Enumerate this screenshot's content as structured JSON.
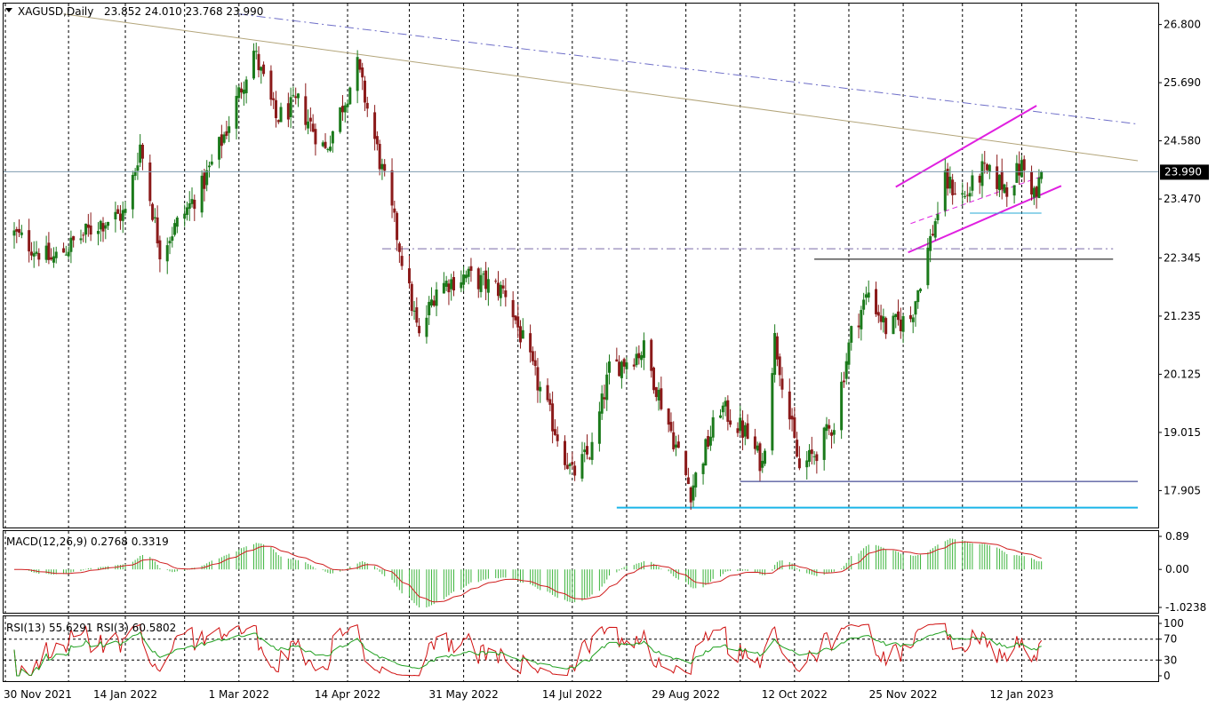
{
  "chart_data": {
    "type": "candlestick",
    "header": {
      "symbol": "XAGUSD,Daily",
      "ohlc": "23.852 24.010 23.768 23.990"
    },
    "price_axis_labels": [
      "26.800",
      "25.690",
      "24.580",
      "23.470",
      "22.345",
      "21.235",
      "20.125",
      "19.015",
      "17.905"
    ],
    "current_price_label": "23.990",
    "current_price": 23.99,
    "ylim": [
      17.2,
      27.2
    ],
    "date_labels": [
      "30 Nov 2021",
      "14 Jan 2022",
      "1 Mar 2022",
      "14 Apr 2022",
      "31 May 2022",
      "14 Jul 2022",
      "29 Aug 2022",
      "12 Oct 2022",
      "25 Nov 2022",
      "12 Jan 2023"
    ],
    "waypoints": [
      {
        "date": "2021-11-30",
        "price": 22.8
      },
      {
        "date": "2021-12-15",
        "price": 22.3
      },
      {
        "date": "2022-01-03",
        "price": 23.0
      },
      {
        "date": "2022-01-14",
        "price": 23.2
      },
      {
        "date": "2022-01-20",
        "price": 24.5
      },
      {
        "date": "2022-01-28",
        "price": 22.5
      },
      {
        "date": "2022-02-14",
        "price": 23.7
      },
      {
        "date": "2022-02-24",
        "price": 24.8
      },
      {
        "date": "2022-03-07",
        "price": 26.3
      },
      {
        "date": "2022-03-16",
        "price": 25.0
      },
      {
        "date": "2022-03-25",
        "price": 25.3
      },
      {
        "date": "2022-04-05",
        "price": 24.4
      },
      {
        "date": "2022-04-18",
        "price": 26.0
      },
      {
        "date": "2022-05-03",
        "price": 23.0
      },
      {
        "date": "2022-05-13",
        "price": 20.8
      },
      {
        "date": "2022-05-20",
        "price": 21.8
      },
      {
        "date": "2022-06-01",
        "price": 22.0
      },
      {
        "date": "2022-06-17",
        "price": 21.7
      },
      {
        "date": "2022-06-28",
        "price": 20.2
      },
      {
        "date": "2022-07-14",
        "price": 18.2
      },
      {
        "date": "2022-07-22",
        "price": 18.7
      },
      {
        "date": "2022-07-29",
        "price": 20.2
      },
      {
        "date": "2022-08-12",
        "price": 20.6
      },
      {
        "date": "2022-08-31",
        "price": 17.9
      },
      {
        "date": "2022-09-12",
        "price": 19.5
      },
      {
        "date": "2022-09-22",
        "price": 19.0
      },
      {
        "date": "2022-09-29",
        "price": 18.4
      },
      {
        "date": "2022-10-04",
        "price": 20.8
      },
      {
        "date": "2022-10-14",
        "price": 18.3
      },
      {
        "date": "2022-10-20",
        "price": 18.6
      },
      {
        "date": "2022-10-28",
        "price": 19.2
      },
      {
        "date": "2022-11-04",
        "price": 20.9
      },
      {
        "date": "2022-11-11",
        "price": 21.7
      },
      {
        "date": "2022-11-18",
        "price": 21.0
      },
      {
        "date": "2022-11-28",
        "price": 21.2
      },
      {
        "date": "2022-12-05",
        "price": 22.5
      },
      {
        "date": "2022-12-12",
        "price": 23.8
      },
      {
        "date": "2022-12-20",
        "price": 23.5
      },
      {
        "date": "2022-12-27",
        "price": 24.0
      },
      {
        "date": "2023-01-06",
        "price": 23.7
      },
      {
        "date": "2023-01-12",
        "price": 24.1
      },
      {
        "date": "2023-01-18",
        "price": 23.5
      },
      {
        "date": "2023-01-20",
        "price": 23.99
      }
    ],
    "drawn_lines": [
      {
        "name": "long-term-resistance",
        "color": "#b3a57a",
        "style": "solid",
        "from": {
          "date": "2021-12-20",
          "price": 27.0
        },
        "to": {
          "date": "2023-02-28",
          "price": 24.2
        }
      },
      {
        "name": "upper-dashdot-trend",
        "color": "#6e6ec8",
        "style": "dashdot",
        "from": {
          "date": "2022-03-01",
          "price": 27.0
        },
        "to": {
          "date": "2023-02-28",
          "price": 24.9
        }
      },
      {
        "name": "channel-upper",
        "color": "#e020e0",
        "style": "solid",
        "from": {
          "date": "2022-11-22",
          "price": 23.7
        },
        "to": {
          "date": "2023-01-18",
          "price": 25.25
        }
      },
      {
        "name": "channel-lower",
        "color": "#e020e0",
        "style": "solid",
        "from": {
          "date": "2022-11-27",
          "price": 22.45
        },
        "to": {
          "date": "2023-01-28",
          "price": 23.72
        }
      },
      {
        "name": "channel-mid",
        "color": "#e020e0",
        "style": "dash",
        "from": {
          "date": "2022-11-28",
          "price": 23.0
        },
        "to": {
          "date": "2023-01-20",
          "price": 23.9
        }
      },
      {
        "name": "level-22-5",
        "color": "#7a6aa8",
        "style": "dashdot",
        "from": {
          "date": "2022-04-28",
          "price": 22.52
        },
        "to": {
          "date": "2023-02-18",
          "price": 22.52
        }
      },
      {
        "name": "level-22-3",
        "color": "#000000",
        "style": "solid",
        "from": {
          "date": "2022-10-20",
          "price": 22.32
        },
        "to": {
          "date": "2023-02-18",
          "price": 22.32
        }
      },
      {
        "name": "level-23-2",
        "color": "#26a9d6",
        "style": "solid",
        "from": {
          "date": "2022-12-22",
          "price": 23.2
        },
        "to": {
          "date": "2023-01-20",
          "price": 23.2
        }
      },
      {
        "name": "support-18-08",
        "color": "#1a237e",
        "style": "solid",
        "from": {
          "date": "2022-09-20",
          "price": 18.08
        },
        "to": {
          "date": "2023-02-28",
          "price": 18.08
        }
      },
      {
        "name": "support-17-6",
        "color": "#1ab5e8",
        "style": "solid",
        "from": {
          "date": "2022-08-01",
          "price": 17.58
        },
        "to": {
          "date": "2023-02-28",
          "price": 17.58
        }
      }
    ],
    "macd": {
      "label": "MACD(12,26,9) 0.2768 0.3319",
      "axis_labels": [
        "0.89",
        "0.00",
        "-1.0238"
      ],
      "ylim": [
        -1.0238,
        0.89
      ]
    },
    "rsi": {
      "label": "RSI(13) 55.6291  RSI(3) 60.5802",
      "axis_labels": [
        "100",
        "70",
        "30",
        "0"
      ],
      "ylim": [
        0,
        100
      ]
    },
    "colors": {
      "bull": "#1b7a1b",
      "bear": "#8b1a1a",
      "macd_hist": "#3cb43c",
      "macd_signal": "#d02020",
      "rsi_fast": "#d01010",
      "rsi_slow": "#20a020",
      "grid": "#000000"
    }
  }
}
